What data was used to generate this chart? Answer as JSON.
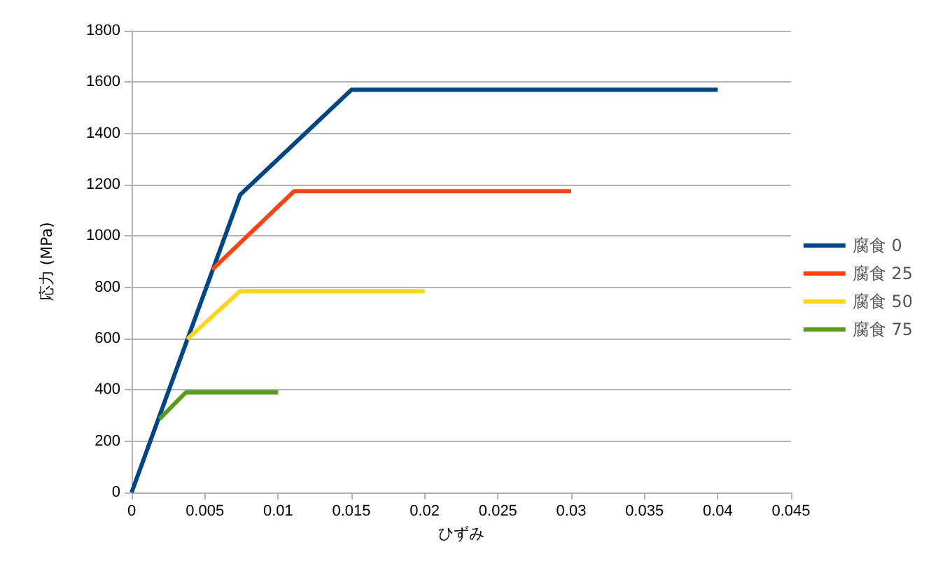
{
  "chart_data": {
    "type": "line",
    "xlabel": "ひずみ",
    "ylabel": "応力 (MPa)",
    "xlim": [
      0,
      0.045
    ],
    "xticks": [
      0,
      0.005,
      0.01,
      0.015,
      0.02,
      0.025,
      0.03,
      0.035,
      0.04,
      0.045
    ],
    "ylim": [
      0,
      1800
    ],
    "yticks": [
      0,
      200,
      400,
      600,
      800,
      1000,
      1200,
      1400,
      1600,
      1800
    ],
    "grid": "y",
    "legend": "right",
    "marker": "none",
    "line_style": "solid",
    "series": [
      {
        "name": "腐食 0",
        "color": "#004586",
        "x": [
          0,
          0.0074,
          0.015,
          0.04
        ],
        "values": [
          0,
          1160,
          1570,
          1570
        ]
      },
      {
        "name": "腐食 25",
        "color": "#ff420e",
        "x": [
          0.0055,
          0.0111,
          0.03
        ],
        "values": [
          869,
          1175,
          1175
        ]
      },
      {
        "name": "腐食 50",
        "color": "#ffd320",
        "x": [
          0.0038,
          0.0074,
          0.02
        ],
        "values": [
          598,
          785,
          785
        ]
      },
      {
        "name": "腐食 75",
        "color": "#579d1c",
        "x": [
          0.0019,
          0.0037,
          0.01
        ],
        "values": [
          286,
          390,
          390
        ]
      }
    ]
  }
}
